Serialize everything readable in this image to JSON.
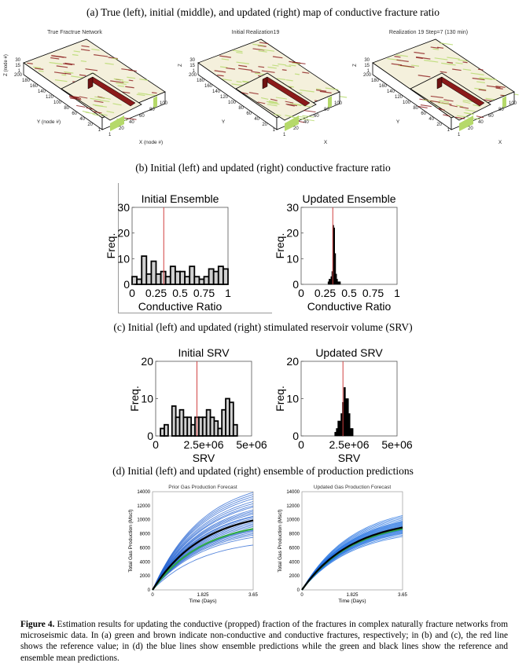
{
  "sections": {
    "a": "(a) True (left), initial (middle), and updated (right) map of conductive fracture ratio",
    "b": "(b) Initial (left) and updated (right) conductive fracture ratio",
    "c": "(c) Initial (left) and updated (right) stimulated reservoir volume (SRV)",
    "d": "(d) Initial (left) and updated (right) ensemble of production predictions"
  },
  "maps": [
    {
      "title": "True Fractrue Network",
      "zlabel": "Z (node #)",
      "ylabel": "Y (node #)",
      "xlabel": "X (node #)"
    },
    {
      "title": "Initial Realization19",
      "zlabel": "Z",
      "ylabel": "Y",
      "xlabel": "X"
    },
    {
      "title": "Realization 19 Step=7 (130 min)",
      "zlabel": "Z",
      "ylabel": "Y",
      "xlabel": "X"
    }
  ],
  "map_ticks": {
    "z": [
      "30",
      "15",
      "1"
    ],
    "y": [
      "200",
      "180",
      "160",
      "140",
      "120",
      "100",
      "80",
      "60",
      "40",
      "20",
      "1"
    ],
    "x": [
      "1",
      "20",
      "40",
      "60",
      "80",
      "100"
    ]
  },
  "map_colors": {
    "conductive": "#8b1a1a",
    "non_conductive": "#b5d96a",
    "background": "#f4f0dc"
  },
  "caption": {
    "label": "Figure 4.",
    "text": " Estimation results for updating the conductive (propped) fraction of the fractures in complex naturally fracture networks from microseismic data. In (a) green and brown indicate non-conductive and conductive fractures, respectively; in (b) and (c), the red line shows the reference value; in (d)  the blue lines show ensemble predictions while the green and black lines show the reference and ensemble mean predictions."
  },
  "chart_data": [
    {
      "type": "bar",
      "title": "Initial Ensemble",
      "xlabel": "Conductive Ratio",
      "ylabel": "Freq.",
      "xlim": [
        0,
        1
      ],
      "ylim": [
        0,
        30
      ],
      "xticks": [
        "0",
        "0.25",
        "0.5",
        "0.75",
        "1"
      ],
      "yticks": [
        "0",
        "10",
        "20",
        "30"
      ],
      "bin_start": 0.0,
      "bin_width": 0.05,
      "values": [
        3,
        2,
        11,
        4,
        9,
        4,
        5,
        3,
        7,
        5,
        5,
        3,
        7,
        3,
        2,
        3,
        6,
        5,
        7,
        6
      ],
      "reference": 0.33,
      "bar_color": "#d0d0d0"
    },
    {
      "type": "bar",
      "title": "Updated Ensemble",
      "xlabel": "Conductive Ratio",
      "ylabel": "Freq.",
      "xlim": [
        0,
        1
      ],
      "ylim": [
        0,
        30
      ],
      "xticks": [
        "0",
        "0.25",
        "0.5",
        "0.75",
        "1"
      ],
      "yticks": [
        "0",
        "10",
        "20",
        "30"
      ],
      "bin_start": 0.28,
      "bin_width": 0.01,
      "values": [
        1,
        2,
        2,
        3,
        5,
        23,
        22,
        12,
        4,
        2,
        1,
        1,
        1
      ],
      "reference": 0.33,
      "bar_color": "#000000"
    },
    {
      "type": "bar",
      "title": "Initial SRV",
      "xlabel": "SRV",
      "ylabel": "Freq.",
      "xlim": [
        0,
        5000000
      ],
      "ylim": [
        0,
        20
      ],
      "xticks": [
        "0",
        "2.5e+06",
        "5e+06"
      ],
      "yticks": [
        "0",
        "10",
        "20"
      ],
      "bin_start": 250000,
      "bin_width": 200000,
      "values": [
        2,
        3,
        0,
        8,
        5,
        7,
        5,
        5,
        3,
        5,
        5,
        5,
        7,
        5,
        4,
        2,
        7,
        10,
        9,
        3
      ],
      "reference": 2150000,
      "bar_color": "#d0d0d0"
    },
    {
      "type": "bar",
      "title": "Updated SRV",
      "xlabel": "SRV",
      "ylabel": "Freq.",
      "xlim": [
        0,
        5000000
      ],
      "ylim": [
        0,
        20
      ],
      "xticks": [
        "0",
        "2.5e+06",
        "5e+06"
      ],
      "yticks": [
        "0",
        "10",
        "20"
      ],
      "bin_start": 1750000,
      "bin_width": 80000,
      "values": [
        1,
        2,
        4,
        4,
        6,
        9,
        13,
        10,
        10,
        6,
        2,
        2
      ],
      "reference": 2180000,
      "bar_color": "#000000"
    },
    {
      "type": "line",
      "title": "Prior Gas Production Forecast",
      "xlabel": "Time (Days)",
      "ylabel": "Total Gas Production (Mscf)",
      "xlim": [
        0,
        3.65
      ],
      "ylim": [
        0,
        14000
      ],
      "xticks": [
        "0",
        "1.825",
        "3.65"
      ],
      "yticks": [
        "0",
        "2000",
        "4000",
        "6000",
        "8000",
        "10000",
        "12000",
        "14000"
      ],
      "ensemble_final_values": [
        6400,
        7500,
        7800,
        8000,
        8200,
        8400,
        8500,
        8700,
        9000,
        9200,
        9400,
        9600,
        9800,
        10000,
        10200,
        10400,
        10500,
        10800,
        11000,
        11200,
        11400,
        11800,
        12000,
        12300,
        12600,
        13000,
        13300,
        13600,
        13900
      ],
      "reference_final": 8700,
      "mean_final": 9900,
      "colors": {
        "ensemble": "#1f5fd0",
        "reference": "#2ea84a",
        "mean": "#000000"
      }
    },
    {
      "type": "line",
      "title": "Updated Gas Production Forecast",
      "xlabel": "Time (Days)",
      "ylabel": "Total Gas Production (Mscf)",
      "xlim": [
        0,
        3.65
      ],
      "ylim": [
        0,
        14000
      ],
      "xticks": [
        "0",
        "1.825",
        "3.65"
      ],
      "yticks": [
        "0",
        "2000",
        "4000",
        "6000",
        "8000",
        "10000",
        "12000",
        "14000"
      ],
      "ensemble_final_values": [
        7600,
        7800,
        8000,
        8100,
        8200,
        8300,
        8400,
        8500,
        8550,
        8600,
        8650,
        8700,
        8750,
        8800,
        8850,
        8900,
        8950,
        9000,
        9100,
        9200,
        9300,
        9400,
        9500,
        9600,
        9700,
        9800,
        10000,
        10200,
        10400,
        10600
      ],
      "reference_final": 8700,
      "mean_final": 8900,
      "colors": {
        "ensemble": "#1f6fe0",
        "reference": "#2ea84a",
        "mean": "#000000"
      }
    }
  ]
}
